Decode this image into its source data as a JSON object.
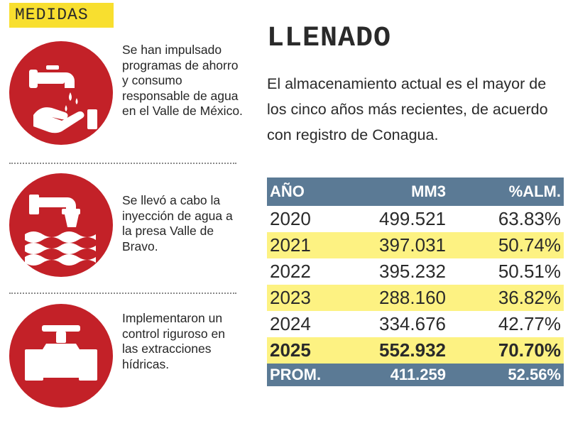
{
  "left": {
    "tag": "MEDIDAS",
    "measures": [
      {
        "text": "Se han impulsado programas de ahorro y consumo responsable de agua en el Valle de México.",
        "icon": "hand-faucet-icon"
      },
      {
        "text": "Se llevó a cabo la inyección de agua a la presa Valle de Bravo.",
        "icon": "pipe-water-icon"
      },
      {
        "text": "Implementaron un control riguroso en las extracciones hídricas.",
        "icon": "valve-icon"
      }
    ]
  },
  "right": {
    "title": "LLENADO",
    "description": "El almacenamiento actual es el mayor de los cinco años más recientes, de acuerdo con registro de Conagua.",
    "table": {
      "headers": [
        "AÑO",
        "MM3",
        "%ALM."
      ],
      "rows": [
        {
          "year": "2020",
          "mm3": "499.521",
          "pct": "63.83%"
        },
        {
          "year": "2021",
          "mm3": "397.031",
          "pct": "50.74%"
        },
        {
          "year": "2022",
          "mm3": "395.232",
          "pct": "50.51%"
        },
        {
          "year": "2023",
          "mm3": "288.160",
          "pct": "36.82%"
        },
        {
          "year": "2024",
          "mm3": "334.676",
          "pct": "42.77%"
        },
        {
          "year": "2025",
          "mm3": "552.932",
          "pct": "70.70%"
        }
      ],
      "average": {
        "label": "PROM.",
        "mm3": "411.259",
        "pct": "52.56%"
      }
    },
    "colors": {
      "header": "#5b7a95",
      "highlight": "#fdf282",
      "tag": "#f8df2f",
      "icon_bg": "#c32128"
    }
  }
}
